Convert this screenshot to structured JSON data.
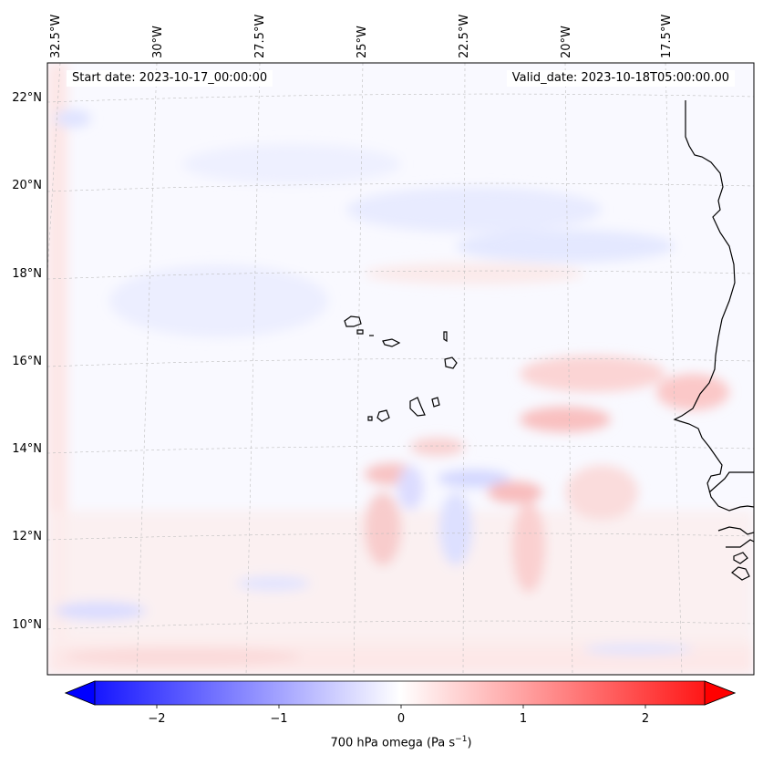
{
  "header": {
    "start_date": "Start date: 2023-10-17_00:00:00",
    "valid_date": "Valid_date: 2023-10-18T05:00:00.00"
  },
  "map": {
    "lon_labels": [
      "32.5°W",
      "30°W",
      "27.5°W",
      "25°W",
      "22.5°W",
      "20°W",
      "17.5°W"
    ],
    "lat_labels": [
      "22°N",
      "20°N",
      "18°N",
      "16°N",
      "14°N",
      "12°N",
      "10°N"
    ],
    "gridlines": true,
    "coastline_color": "#000000",
    "gridline_color": "#bbbbbb"
  },
  "colorbar": {
    "title": "700 hPa omega (Pa s",
    "title_sup": "−1",
    "title_end": ")",
    "ticks": [
      "−2",
      "−1",
      "0",
      "1",
      "2"
    ],
    "range": [
      -2.5,
      2.5
    ],
    "cmap": "bwr",
    "colors": {
      "low": "#0000ff",
      "mid": "#ffffff",
      "high": "#ff0000"
    },
    "extend": "both"
  }
}
